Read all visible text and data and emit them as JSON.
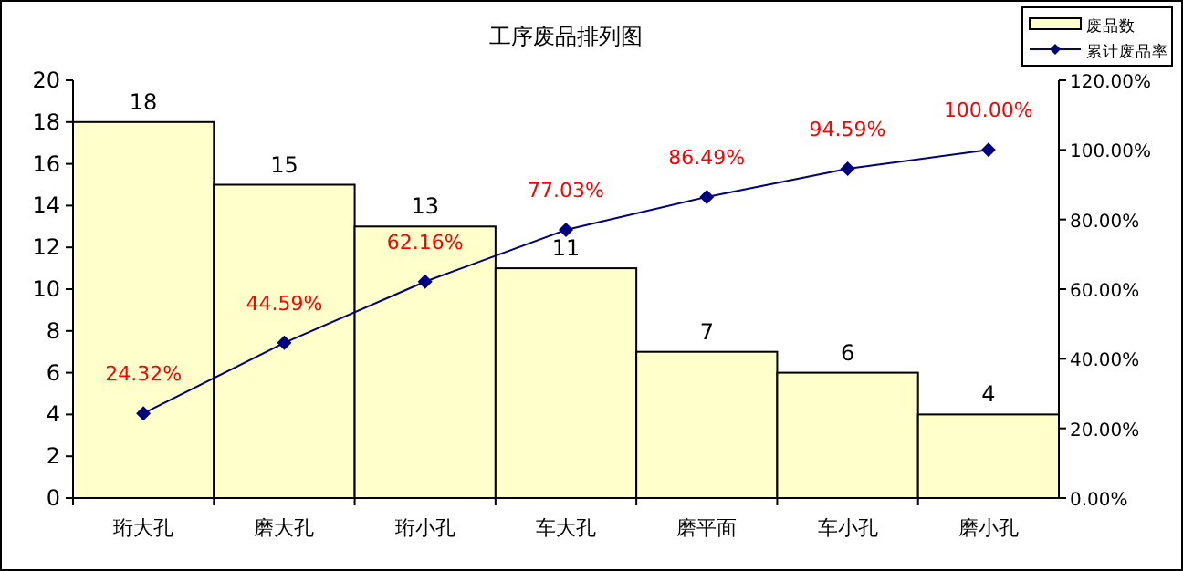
{
  "chart_data": {
    "type": "bar",
    "title": "工序废品排列图",
    "categories": [
      "珩大孔",
      "磨大孔",
      "珩小孔",
      "车大孔",
      "磨平面",
      "车小孔",
      "磨小孔"
    ],
    "series": [
      {
        "name": "废品数",
        "color": "#ffffcc",
        "values": [
          18,
          15,
          13,
          11,
          7,
          6,
          4
        ],
        "value_labels": [
          "18",
          "15",
          "13",
          "11",
          "7",
          "6",
          "4"
        ]
      },
      {
        "name": "累计废品率",
        "type": "line",
        "axis": "y2",
        "color": "#000080",
        "marker": "diamond",
        "values": [
          24.32,
          44.59,
          62.16,
          77.03,
          86.49,
          94.59,
          100.0
        ],
        "value_labels": [
          "24.32%",
          "44.59%",
          "62.16%",
          "77.03%",
          "86.49%",
          "94.59%",
          "100.00%"
        ]
      }
    ],
    "ylim": [
      0,
      20
    ],
    "yticks": [
      0,
      2,
      4,
      6,
      8,
      10,
      12,
      14,
      16,
      18,
      20
    ],
    "y2lim": [
      0,
      120
    ],
    "y2ticks": [
      {
        "value": 0,
        "label": "0.00%"
      },
      {
        "value": 20,
        "label": "20.00%"
      },
      {
        "value": 40,
        "label": "40.00%"
      },
      {
        "value": 60,
        "label": "60.00%"
      },
      {
        "value": 80,
        "label": "80.00%"
      },
      {
        "value": 100,
        "label": "100.00%"
      },
      {
        "value": 120,
        "label": "120.00%"
      }
    ],
    "legend": "top right",
    "grid": false
  }
}
